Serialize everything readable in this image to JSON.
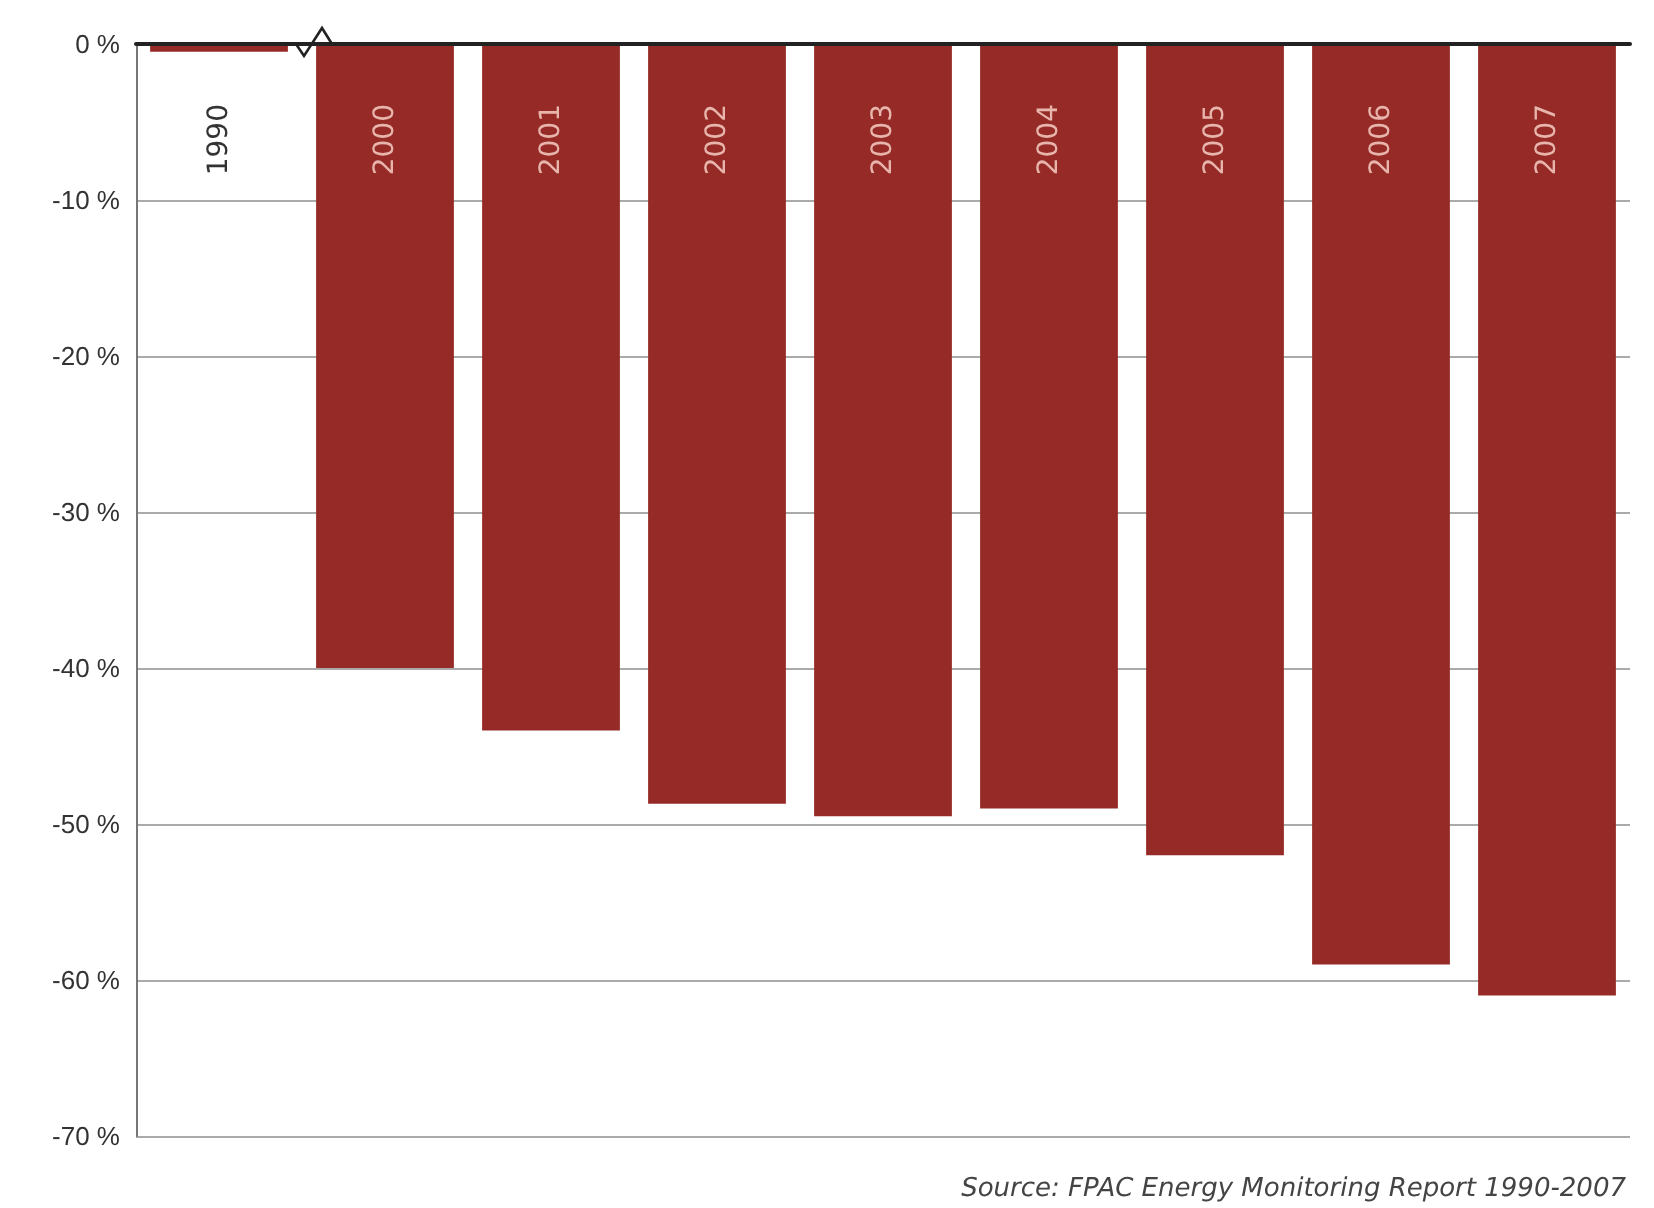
{
  "chart_data": {
    "type": "bar",
    "categories": [
      "1990",
      "2000",
      "2001",
      "2002",
      "2003",
      "2004",
      "2005",
      "2006",
      "2007"
    ],
    "values": [
      -0.5,
      -40,
      -44,
      -48.7,
      -49.5,
      -49,
      -52,
      -59,
      -61
    ],
    "color": "#952a27",
    "ylim": [
      -70,
      0
    ],
    "yticks": [
      {
        "value": 0,
        "label": "0 %"
      },
      {
        "value": -10,
        "label": "-10 %"
      },
      {
        "value": -20,
        "label": "-20 %"
      },
      {
        "value": -30,
        "label": "-30 %"
      },
      {
        "value": -40,
        "label": "-40 %"
      },
      {
        "value": -50,
        "label": "-50 %"
      },
      {
        "value": -60,
        "label": "-60 %"
      },
      {
        "value": -70,
        "label": "-70 %"
      }
    ],
    "grid": "y",
    "annotations": [
      "Source:  FPAC Energy Monitoring Report 1990-2007"
    ]
  }
}
